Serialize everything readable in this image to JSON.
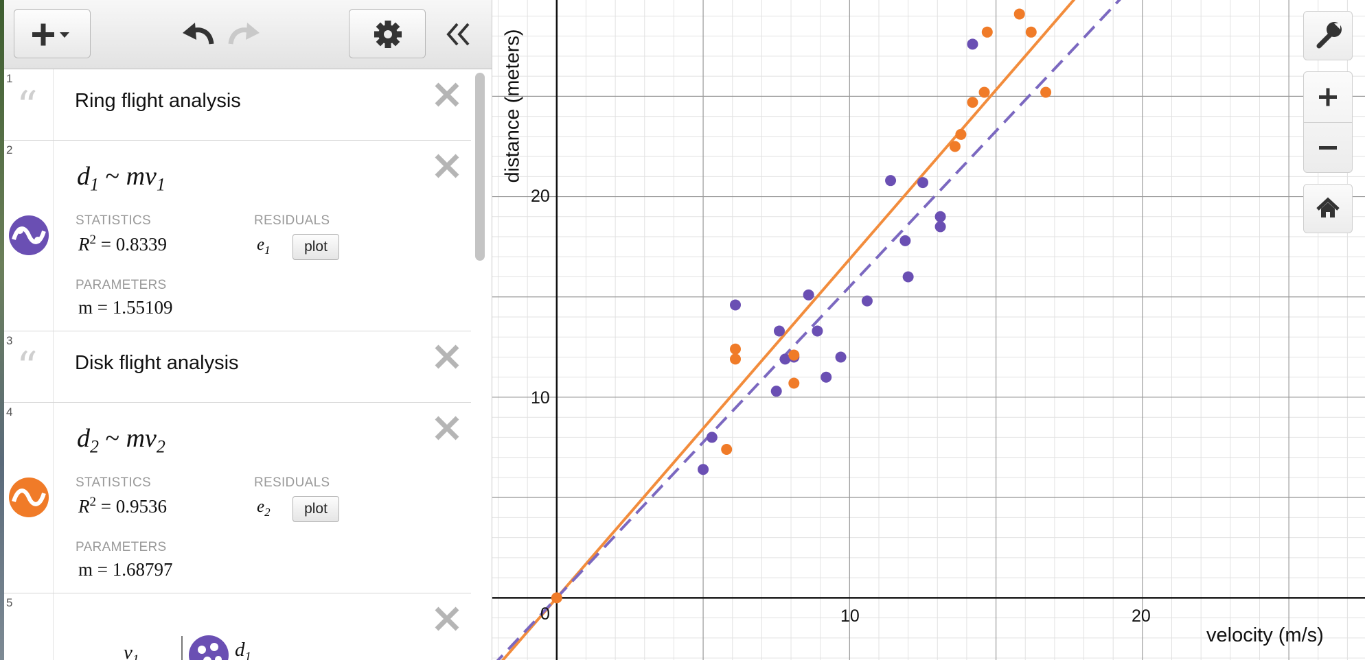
{
  "toolbar": {
    "add_icon": "plus-dropdown-icon",
    "undo_icon": "undo-icon",
    "redo_icon": "redo-icon",
    "settings_icon": "gear-icon",
    "collapse_icon": "double-chevron-left-icon"
  },
  "expressions": [
    {
      "num": "1",
      "type": "note",
      "text": "Ring flight analysis"
    },
    {
      "num": "2",
      "type": "regression",
      "formula": {
        "lhs": "d",
        "lhs_sub": "1",
        "op": "~",
        "rhs": "mv",
        "rhs_sub": "1"
      },
      "stats_label": "STATISTICS",
      "r2_lhs": "R",
      "r2_exp": "2",
      "r2_value": "= 0.8339",
      "residuals_label": "RESIDUALS",
      "residual_var": "e",
      "residual_sub": "1",
      "plot_label": "plot",
      "params_label": "PARAMETERS",
      "param": "m = 1.55109",
      "color": "#6a4fb3"
    },
    {
      "num": "3",
      "type": "note",
      "text": "Disk flight analysis"
    },
    {
      "num": "4",
      "type": "regression",
      "formula": {
        "lhs": "d",
        "lhs_sub": "2",
        "op": "~",
        "rhs": "mv",
        "rhs_sub": "2"
      },
      "stats_label": "STATISTICS",
      "r2_lhs": "R",
      "r2_exp": "2",
      "r2_value": "= 0.9536",
      "residuals_label": "RESIDUALS",
      "residual_var": "e",
      "residual_sub": "2",
      "plot_label": "plot",
      "params_label": "PARAMETERS",
      "param": "m = 1.68797",
      "color": "#f07b28"
    },
    {
      "num": "5",
      "type": "table",
      "col1": "v",
      "col1_sub": "1",
      "col2": "d",
      "col2_sub": "1"
    }
  ],
  "graph": {
    "xlabel": "velocity (m/s)",
    "ylabel": "distance (meters)",
    "x_ticks": [
      "10",
      "20"
    ],
    "y_ticks": [
      "10",
      "20"
    ],
    "origin_label": "0",
    "controls": [
      "wrench-icon",
      "zoom-in-icon",
      "zoom-out-icon",
      "home-icon"
    ]
  },
  "chart_data": {
    "type": "scatter",
    "xlabel": "velocity (m/s)",
    "ylabel": "distance (meters)",
    "xlim": [
      -2.2,
      27.6
    ],
    "ylim": [
      -3.1,
      29.8
    ],
    "grid": true,
    "series": [
      {
        "color": "#6a4fb3",
        "style": "points",
        "points": [
          [
            5.0,
            6.4
          ],
          [
            5.3,
            8.0
          ],
          [
            6.1,
            14.6
          ],
          [
            7.5,
            10.3
          ],
          [
            7.6,
            13.3
          ],
          [
            7.8,
            11.9
          ],
          [
            8.1,
            12.0
          ],
          [
            8.6,
            15.1
          ],
          [
            8.9,
            13.3
          ],
          [
            9.2,
            11.0
          ],
          [
            9.7,
            12.0
          ],
          [
            10.6,
            14.8
          ],
          [
            11.4,
            20.8
          ],
          [
            11.9,
            17.8
          ],
          [
            12.0,
            16.0
          ],
          [
            12.5,
            20.7
          ],
          [
            13.1,
            19.0
          ],
          [
            13.1,
            18.5
          ],
          [
            14.2,
            27.6
          ]
        ]
      },
      {
        "color": "#f07b28",
        "style": "points",
        "points": [
          [
            0,
            0
          ],
          [
            5.8,
            7.4
          ],
          [
            6.1,
            12.4
          ],
          [
            6.1,
            11.9
          ],
          [
            8.1,
            12.1
          ],
          [
            8.1,
            10.7
          ],
          [
            13.6,
            22.5
          ],
          [
            13.8,
            23.1
          ],
          [
            14.2,
            24.7
          ],
          [
            14.6,
            25.2
          ],
          [
            14.7,
            28.2
          ],
          [
            15.8,
            29.1
          ],
          [
            16.2,
            28.2
          ],
          [
            16.7,
            25.2
          ]
        ]
      },
      {
        "color": "#f28c3c",
        "style": "solid",
        "slope": 1.68797
      },
      {
        "color": "#7b68c0",
        "style": "dashed",
        "slope": 1.55109
      }
    ]
  }
}
